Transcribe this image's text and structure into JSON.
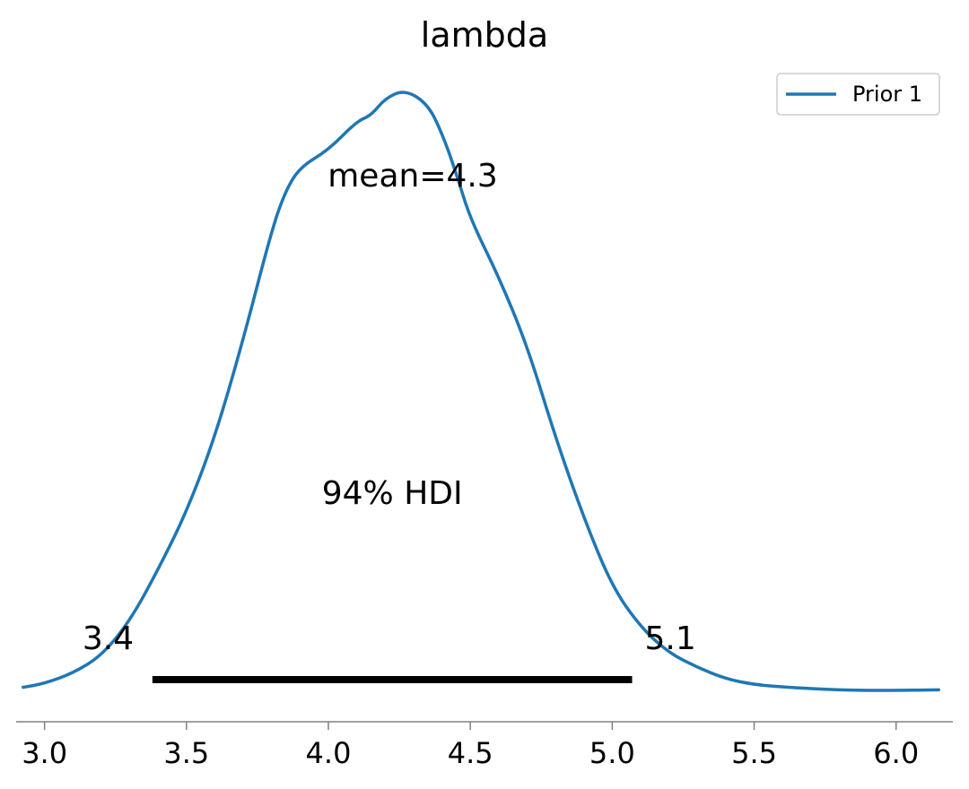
{
  "chart_data": {
    "type": "line",
    "title": "lambda",
    "xlabel": "",
    "ylabel": "",
    "xlim": [
      2.9,
      6.2
    ],
    "ylim": [
      0,
      1.0
    ],
    "x_ticks": [
      "3.0",
      "3.5",
      "4.0",
      "4.5",
      "5.0",
      "5.5",
      "6.0"
    ],
    "x_tick_values": [
      3.0,
      3.5,
      4.0,
      4.5,
      5.0,
      5.5,
      6.0
    ],
    "series": [
      {
        "name": "Prior 1",
        "color": "#1f77b4",
        "x": [
          2.92,
          3.0,
          3.1,
          3.2,
          3.3,
          3.4,
          3.5,
          3.6,
          3.7,
          3.8,
          3.85,
          3.9,
          4.0,
          4.1,
          4.15,
          4.2,
          4.27,
          4.35,
          4.4,
          4.45,
          4.5,
          4.6,
          4.7,
          4.8,
          4.9,
          5.0,
          5.1,
          5.2,
          5.3,
          5.4,
          5.5,
          5.6,
          5.7,
          5.8,
          5.9,
          6.0,
          6.15
        ],
        "y": [
          0.005,
          0.012,
          0.03,
          0.06,
          0.12,
          0.21,
          0.31,
          0.44,
          0.61,
          0.8,
          0.87,
          0.91,
          0.94,
          0.99,
          1.0,
          1.03,
          1.045,
          1.02,
          0.97,
          0.9,
          0.82,
          0.72,
          0.6,
          0.44,
          0.3,
          0.18,
          0.11,
          0.065,
          0.04,
          0.02,
          0.01,
          0.006,
          0.003,
          0.001,
          0.0,
          0.0,
          0.001
        ]
      }
    ],
    "hdi": {
      "label": "94% HDI",
      "low": 3.38,
      "high": 5.07,
      "low_label": "3.4",
      "high_label": "5.1"
    },
    "mean": {
      "label": "mean=4.3"
    },
    "legend": {
      "position": "top-right",
      "entries": [
        "Prior 1"
      ]
    },
    "grid": false
  }
}
